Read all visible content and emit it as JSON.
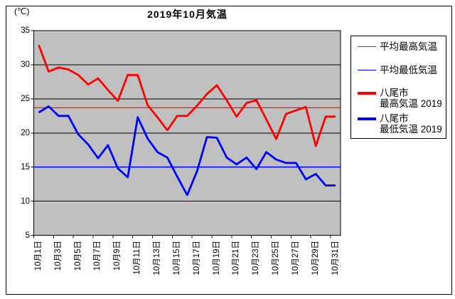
{
  "title": "2019年10月気温",
  "y_axis": {
    "unit_label": "(℃)",
    "ticks": [
      35,
      30,
      25,
      20,
      15,
      10,
      5
    ]
  },
  "legend": {
    "items": [
      {
        "label": "平均最高気温",
        "color": "#ff0000",
        "thick": false
      },
      {
        "label": "平均最低気温",
        "color": "#0000ff",
        "thick": false
      },
      {
        "label_line1": "八尾市",
        "label_line2": "最高気温 2019",
        "color": "#ff0000",
        "thick": true
      },
      {
        "label_line1": "八尾市",
        "label_line2": "最低気温 2019",
        "color": "#0000ff",
        "thick": true
      }
    ]
  },
  "chart_data": {
    "type": "line",
    "title": "2019年10月気温",
    "ylabel": "(℃)",
    "ylim": [
      5,
      35
    ],
    "grid": true,
    "plot_bg": "#c0c0c0",
    "legend_position": "right",
    "x_days": [
      1,
      2,
      3,
      4,
      5,
      6,
      7,
      8,
      9,
      10,
      11,
      12,
      13,
      14,
      15,
      16,
      17,
      18,
      19,
      20,
      21,
      22,
      23,
      24,
      25,
      26,
      27,
      28,
      29,
      30,
      31
    ],
    "xtick_labels": [
      "10月1日",
      "10月3日",
      "10月5日",
      "10月7日",
      "10月9日",
      "10月11日",
      "10月13日",
      "10月15日",
      "10月17日",
      "10月19日",
      "10月21日",
      "10月23日",
      "10月25日",
      "10月27日",
      "10月29日",
      "10月31日"
    ],
    "series": [
      {
        "name": "平均最高気温",
        "type": "constant",
        "value": 23.7,
        "color": "#ff0000",
        "width": 1.2
      },
      {
        "name": "平均最低気温",
        "type": "constant",
        "value": 15.0,
        "color": "#0000ff",
        "width": 1.5
      },
      {
        "name": "八尾市 最高気温 2019",
        "type": "line",
        "color": "#ff0000",
        "width": 2.8,
        "values": [
          32.9,
          29.0,
          29.6,
          29.3,
          28.5,
          27.1,
          28.0,
          26.3,
          24.7,
          28.5,
          28.5,
          24.1,
          22.3,
          20.4,
          22.5,
          22.5,
          24.0,
          25.7,
          27.0,
          24.8,
          22.4,
          24.4,
          24.8,
          22.0,
          19.1,
          22.8,
          23.3,
          23.8,
          18.1,
          22.4,
          22.4
        ]
      },
      {
        "name": "八尾市 最低気温 2019",
        "type": "line",
        "color": "#0000ff",
        "width": 2.8,
        "values": [
          23.0,
          23.9,
          22.5,
          22.5,
          19.8,
          18.3,
          16.3,
          18.2,
          14.8,
          13.5,
          22.3,
          19.2,
          17.2,
          16.4,
          13.6,
          10.9,
          14.4,
          19.4,
          19.3,
          16.4,
          15.4,
          16.4,
          14.7,
          17.2,
          16.1,
          15.6,
          15.6,
          13.2,
          14.0,
          12.3,
          12.3
        ]
      }
    ]
  }
}
